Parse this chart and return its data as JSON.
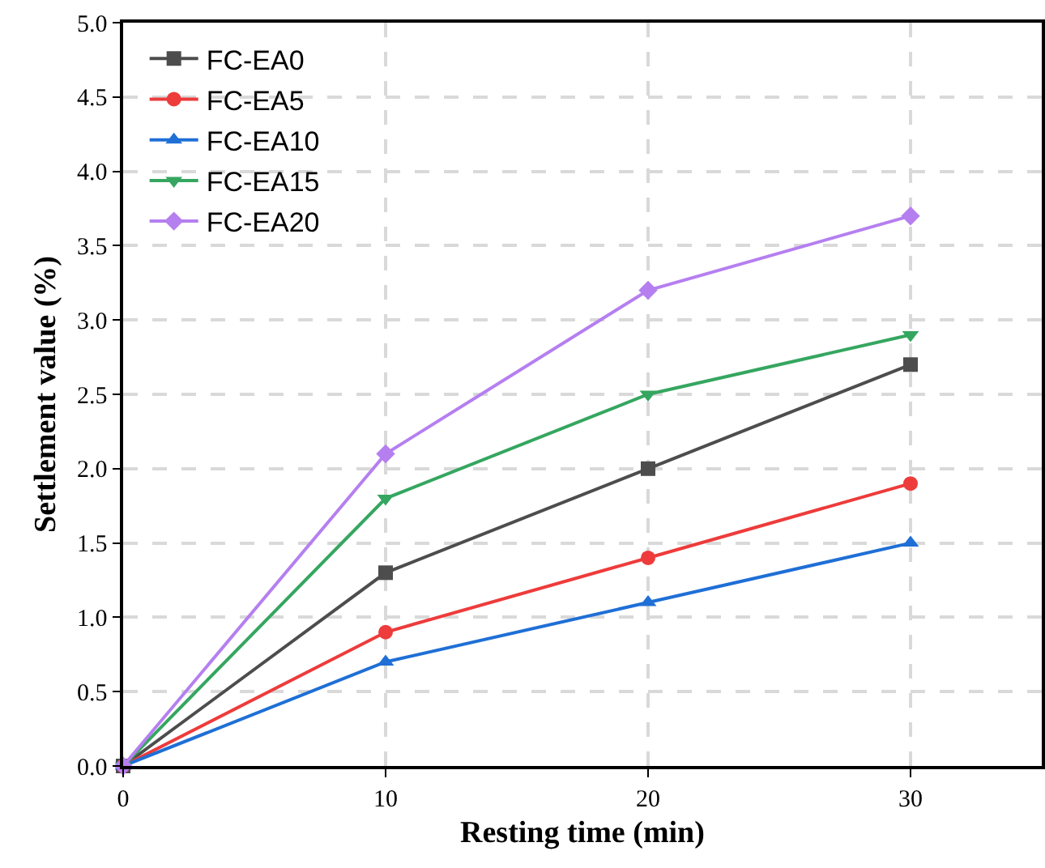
{
  "chart_data": {
    "type": "line",
    "xlabel": "Resting time (min)",
    "ylabel": "Settlement value (%)",
    "x": [
      0,
      10,
      20,
      30
    ],
    "series": [
      {
        "name": "FC-EA0",
        "color": "#4d4d4d",
        "marker": "square",
        "values": [
          0,
          1.3,
          2.0,
          2.7
        ]
      },
      {
        "name": "FC-EA5",
        "color": "#ee3b3b",
        "marker": "circle",
        "values": [
          0,
          0.9,
          1.4,
          1.9
        ]
      },
      {
        "name": "FC-EA10",
        "color": "#1f6fd6",
        "marker": "triangle",
        "values": [
          0,
          0.7,
          1.1,
          1.5
        ]
      },
      {
        "name": "FC-EA15",
        "color": "#35a660",
        "marker": "triangle-down",
        "values": [
          0,
          1.8,
          2.5,
          2.9
        ]
      },
      {
        "name": "FC-EA20",
        "color": "#b57ff0",
        "marker": "diamond",
        "values": [
          0,
          2.1,
          3.2,
          3.7
        ]
      }
    ],
    "xlim": [
      0,
      35
    ],
    "xticks": [
      0,
      10,
      20,
      30
    ],
    "ylim": [
      0,
      5
    ],
    "yticks": [
      {
        "value": 0,
        "label": "0.0"
      },
      {
        "value": 0.5,
        "label": "0.5"
      },
      {
        "value": 1,
        "label": "1.0"
      },
      {
        "value": 1.5,
        "label": "1.5"
      },
      {
        "value": 2,
        "label": "2.0"
      },
      {
        "value": 2.5,
        "label": "2.5"
      },
      {
        "value": 3,
        "label": "3.0"
      },
      {
        "value": 3.5,
        "label": "3.5"
      },
      {
        "value": 4,
        "label": "4.0"
      },
      {
        "value": 4.5,
        "label": "4.5"
      },
      {
        "value": 5,
        "label": "5.0"
      }
    ],
    "grid": true,
    "legend": "top left",
    "line_style": "solid"
  }
}
